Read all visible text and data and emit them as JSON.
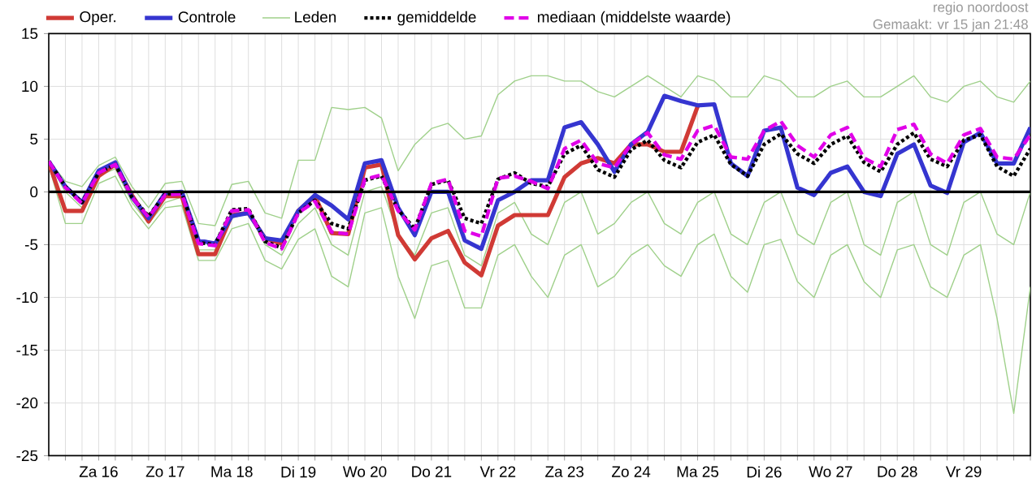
{
  "chart_data": {
    "type": "line",
    "annotations": [
      "regio noordoost",
      "Gemaakt: vr 15 jan 21:48"
    ],
    "categories": [
      null,
      null,
      null,
      "Za 16",
      null,
      null,
      null,
      "Zo 17",
      null,
      null,
      null,
      "Ma 18",
      null,
      null,
      null,
      "Di 19",
      null,
      null,
      null,
      "Wo 20",
      null,
      null,
      null,
      "Do 21",
      null,
      null,
      null,
      "Vr 22",
      null,
      null,
      null,
      "Za 23",
      null,
      null,
      null,
      "Zo 24",
      null,
      null,
      null,
      "Ma 25",
      null,
      null,
      null,
      "Di 26",
      null,
      null,
      null,
      "Wo 27",
      null,
      null,
      null,
      "Do 28",
      null,
      null,
      null,
      "Vr 29",
      null,
      null,
      null,
      null
    ],
    "ylim": [
      -25,
      15
    ],
    "yticks": [
      -25,
      -20,
      -15,
      -10,
      -5,
      0,
      5,
      10,
      15
    ],
    "grid": true,
    "legend": "top",
    "ref_lines": [
      {
        "axis": "y",
        "value": 0,
        "color": "#000000"
      }
    ],
    "series": [
      {
        "name": "Oper.",
        "color": "#d03a35",
        "values": [
          2.8,
          -1.8,
          -1.8,
          1.5,
          2.6,
          -0.3,
          -2.8,
          -0.4,
          -0.4,
          -5.9,
          -5.9,
          -2.2,
          -2.0,
          -4.4,
          -4.9,
          -1.8,
          -0.4,
          -3.9,
          -4.0,
          2.3,
          2.6,
          -4.1,
          -6.4,
          -4.4,
          -3.7,
          -6.7,
          -7.9,
          -3.2,
          -2.2,
          -2.2,
          -2.2,
          1.4,
          2.7,
          3.2,
          2.7,
          4.5,
          4.5,
          3.8,
          3.8,
          8.1,
          null,
          null,
          null,
          null,
          null,
          null,
          null,
          null,
          null,
          null,
          null,
          null,
          null,
          null,
          null,
          null,
          null,
          null,
          null,
          null
        ]
      },
      {
        "name": "Controle",
        "color": "#3535d0",
        "values": [
          2.9,
          0.5,
          -1.0,
          2.0,
          2.8,
          -0.5,
          -2.5,
          -0.1,
          0,
          -4.6,
          -4.9,
          -2.3,
          -2.0,
          -4.4,
          -4.6,
          -1.8,
          -0.3,
          -1.3,
          -2.6,
          2.7,
          3.0,
          -1.5,
          -4.1,
          0,
          0,
          -4.6,
          -5.4,
          -0.8,
          0,
          1.1,
          1.1,
          6.1,
          6.6,
          4.5,
          1.9,
          4.5,
          5.7,
          9.1,
          8.6,
          8.2,
          8.3,
          2.7,
          1.5,
          5.8,
          6.1,
          0.4,
          -0.3,
          1.8,
          2.4,
          0,
          -0.4,
          3.6,
          4.5,
          0.6,
          -0.1,
          4.7,
          5.6,
          2.7,
          2.7,
          6.1
        ]
      },
      {
        "name": "Leden",
        "color": "#9fd08a",
        "values": [
          3,
          1.0,
          0.5,
          2.5,
          3.3,
          0.5,
          -1.5,
          0.8,
          1.0,
          -3,
          -3.2,
          0.7,
          1,
          -2,
          -2.5,
          3,
          3,
          8,
          7.8,
          8,
          7,
          2,
          4.5,
          6,
          6.5,
          5,
          5.3,
          9.2,
          10.5,
          11,
          11,
          10.5,
          10.5,
          9.5,
          9,
          10,
          11,
          10,
          9,
          11,
          10.5,
          9,
          9,
          11,
          10.5,
          9,
          9,
          10,
          10.5,
          9,
          9,
          10,
          11,
          9,
          8.5,
          10,
          10.5,
          9,
          8.5,
          10.5
        ]
      },
      {
        "color": "#9fd08a",
        "values": [
          2.5,
          -3,
          -3,
          0.8,
          1.5,
          -1.5,
          -3.5,
          -1.5,
          -1.3,
          -6.5,
          -6.5,
          -3.5,
          -3,
          -6.5,
          -7.3,
          -4.5,
          -3.5,
          -8,
          -9,
          -2,
          -1.5,
          -8,
          -12,
          -7,
          -6.5,
          -11,
          -11,
          -6,
          -5,
          -8,
          -10,
          -6,
          -5,
          -9,
          -8,
          -6,
          -5,
          -7,
          -8,
          -5,
          -4,
          -8,
          -9.5,
          -5,
          -4.5,
          -8.5,
          -10,
          -6,
          -5,
          -8.5,
          -10,
          -5.5,
          -5,
          -9,
          -10,
          -6,
          -5,
          -12,
          -21,
          -9
        ]
      },
      {
        "color": "#9fd08a",
        "values": [
          2.8,
          0,
          -1.5,
          1.5,
          2.2,
          -1,
          -3,
          -1,
          -0.5,
          -5.5,
          -5.5,
          -2.5,
          -2,
          -5,
          -6,
          -3,
          -1.5,
          -5,
          -6,
          0,
          0.5,
          -4,
          -6,
          -2,
          -1.5,
          -6,
          -7,
          -2,
          -1,
          -4,
          -5,
          -1,
          0,
          -4,
          -3,
          -1,
          0,
          -3,
          -4,
          -1,
          0,
          -4,
          -5,
          -1,
          0,
          -4,
          -5,
          -1,
          0,
          -5,
          -6,
          -1,
          0,
          -5,
          -6,
          -1,
          0,
          -4,
          -5,
          0
        ]
      },
      {
        "name": "gemiddelde",
        "color": "#000000",
        "line_style": "dotted",
        "values": [
          2.9,
          0.5,
          -1.0,
          1.8,
          2.6,
          -0.5,
          -2.3,
          -0.2,
          -0.1,
          -4.8,
          -5.0,
          -1.7,
          -1.6,
          -4.7,
          -5.3,
          -2.0,
          -0.8,
          -3.0,
          -3.5,
          1.1,
          1.5,
          -1.7,
          -3.5,
          0.7,
          1.1,
          -2.5,
          -3.0,
          1.2,
          1.8,
          0.8,
          0.5,
          3.6,
          4.4,
          2.1,
          1.4,
          4.0,
          4.9,
          3.0,
          2.3,
          4.7,
          5.4,
          2.6,
          1.5,
          4.5,
          5.5,
          3.6,
          2.7,
          4.5,
          5.3,
          2.8,
          1.9,
          4.5,
          5.6,
          3.1,
          2.4,
          4.9,
          5.4,
          2.4,
          1.5,
          4.1
        ]
      },
      {
        "name": "mediaan (middelste waarde)",
        "color": "#e000e8",
        "line_style": "dashed",
        "values": [
          2.9,
          0.4,
          -1.1,
          1.8,
          2.6,
          -0.5,
          -2.4,
          -0.3,
          -0.2,
          -4.9,
          -5.1,
          -1.8,
          -1.7,
          -4.8,
          -5.4,
          -2.0,
          -0.9,
          -3.8,
          -4.0,
          1.2,
          1.6,
          -1.8,
          -3.6,
          0.8,
          1.2,
          -3.7,
          -4.2,
          1.3,
          1.5,
          1.0,
          0.3,
          4.1,
          4.9,
          2.7,
          2.3,
          4.5,
          5.6,
          3.5,
          3.1,
          5.8,
          6.3,
          3.3,
          3.1,
          5.8,
          6.7,
          4.4,
          3.3,
          5.4,
          6.1,
          3.2,
          2.4,
          5.9,
          6.4,
          3.6,
          2.7,
          5.4,
          6.0,
          3.3,
          3.1,
          5.4
        ]
      }
    ]
  }
}
